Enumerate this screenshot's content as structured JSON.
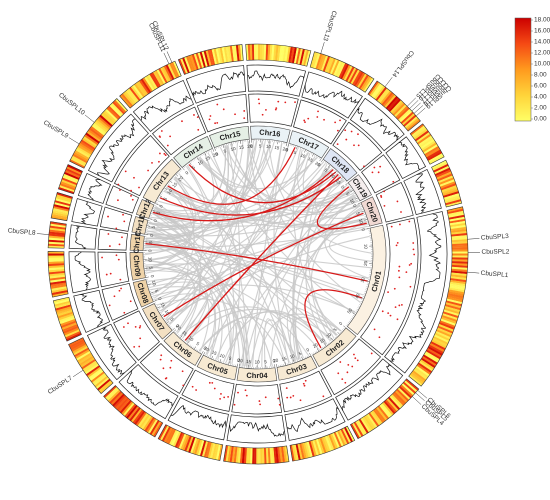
{
  "chart_data": {
    "type": "circos",
    "chromosomes": [
      {
        "name": "Chr01",
        "length": 58,
        "fill": "#fbf1e2"
      },
      {
        "name": "Chr02",
        "length": 24,
        "fill": "#f7ead3"
      },
      {
        "name": "Chr03",
        "length": 20,
        "fill": "#f7ead3"
      },
      {
        "name": "Chr04",
        "length": 20,
        "fill": "#f7ead3"
      },
      {
        "name": "Chr05",
        "length": 20,
        "fill": "#f7ead3"
      },
      {
        "name": "Chr06",
        "length": 20,
        "fill": "#f7ead3"
      },
      {
        "name": "Chr07",
        "length": 18,
        "fill": "#f3e0c2"
      },
      {
        "name": "Chr08",
        "length": 13,
        "fill": "#efd3a8"
      },
      {
        "name": "Chr09",
        "length": 14,
        "fill": "#efd3a8"
      },
      {
        "name": "Chr10",
        "length": 8,
        "fill": "#efd3a8"
      },
      {
        "name": "Chr11",
        "length": 8,
        "fill": "#f3e0c2"
      },
      {
        "name": "Chr12",
        "length": 8,
        "fill": "#f3e0c2"
      },
      {
        "name": "Chr13",
        "length": 24,
        "fill": "#f7ead3"
      },
      {
        "name": "Chr14",
        "length": 20,
        "fill": "#e6f0e6"
      },
      {
        "name": "Chr15",
        "length": 20,
        "fill": "#e6f0e6"
      },
      {
        "name": "Chr16",
        "length": 20,
        "fill": "#eaf2f6"
      },
      {
        "name": "Chr17",
        "length": 20,
        "fill": "#eaf2f6"
      },
      {
        "name": "Chr18",
        "length": 18,
        "fill": "#dfe6f5"
      },
      {
        "name": "Chr19",
        "length": 12,
        "fill": "#f5eeee"
      },
      {
        "name": "Chr20",
        "length": 14,
        "fill": "#f1d9d3"
      }
    ],
    "genes": [
      {
        "name": "CbuSPL1",
        "chr": "Chr01",
        "pos": 20
      },
      {
        "name": "CbuSPL2",
        "chr": "Chr01",
        "pos": 14
      },
      {
        "name": "CbuSPL3",
        "chr": "Chr01",
        "pos": 10
      },
      {
        "name": "CbuSPL4",
        "chr": "Chr02",
        "pos": 3
      },
      {
        "name": "CbuSPL5",
        "chr": "Chr02",
        "pos": 1.5
      },
      {
        "name": "CbuSPL6",
        "chr": "Chr02",
        "pos": 0.5
      },
      {
        "name": "CbuSPL7",
        "chr": "Chr07",
        "pos": 9
      },
      {
        "name": "CbuSPL8",
        "chr": "Chr10",
        "pos": 4
      },
      {
        "name": "CbuSPL9",
        "chr": "Chr13",
        "pos": 6
      },
      {
        "name": "CbuSPL10",
        "chr": "Chr13",
        "pos": 14
      },
      {
        "name": "CbuSPL11",
        "chr": "Chr14",
        "pos": 18
      },
      {
        "name": "CbuSPL12",
        "chr": "Chr14",
        "pos": 19
      },
      {
        "name": "CbuSPL13",
        "chr": "Chr17",
        "pos": 2
      },
      {
        "name": "CbuSPL14",
        "chr": "Chr18",
        "pos": 3
      },
      {
        "name": "CbuSPL15",
        "chr": "Chr18",
        "pos": 12
      },
      {
        "name": "CbuSPL16",
        "chr": "Chr18",
        "pos": 13
      },
      {
        "name": "CbuSPL17",
        "chr": "Chr18",
        "pos": 14
      },
      {
        "name": "CbuSPL18",
        "chr": "Chr18",
        "pos": 15
      },
      {
        "name": "CbuSPL19",
        "chr": "Chr18",
        "pos": 16
      }
    ],
    "segmental_duplications": [
      {
        "from": {
          "chr": "Chr17",
          "pos": 4
        },
        "to": {
          "chr": "Chr13",
          "pos": 12
        }
      },
      {
        "from": {
          "chr": "Chr18",
          "pos": 8
        },
        "to": {
          "chr": "Chr12",
          "pos": 4
        }
      },
      {
        "from": {
          "chr": "Chr18",
          "pos": 12
        },
        "to": {
          "chr": "Chr06",
          "pos": 12
        }
      },
      {
        "from": {
          "chr": "Chr18",
          "pos": 14
        },
        "to": {
          "chr": "Chr13",
          "pos": 4
        }
      },
      {
        "from": {
          "chr": "Chr19",
          "pos": 2
        },
        "to": {
          "chr": "Chr20",
          "pos": 12
        }
      },
      {
        "from": {
          "chr": "Chr20",
          "pos": 6
        },
        "to": {
          "chr": "Chr07",
          "pos": 9
        }
      },
      {
        "from": {
          "chr": "Chr01",
          "pos": 40
        },
        "to": {
          "chr": "Chr02",
          "pos": 18
        }
      },
      {
        "from": {
          "chr": "Chr01",
          "pos": 30
        },
        "to": {
          "chr": "Chr10",
          "pos": 4
        }
      },
      {
        "from": {
          "chr": "Chr14",
          "pos": 4
        },
        "to": {
          "chr": "Chr18",
          "pos": 10
        }
      }
    ],
    "legend": {
      "ticks": [
        "18.00",
        "16.00",
        "14.00",
        "12.00",
        "10.00",
        "8.00",
        "6.00",
        "4.00",
        "2.00",
        "0.00"
      ],
      "range": [
        0,
        18
      ],
      "colors": [
        "#ffff66",
        "#ffd43a",
        "#ff9a1e",
        "#f54a14",
        "#cc0000"
      ],
      "placement": "top-right"
    },
    "colors": {
      "synteny_link": "#c8c8c8",
      "segmental_link": "#d81818",
      "density_points": "#e02020",
      "line_track": "#111111"
    }
  }
}
